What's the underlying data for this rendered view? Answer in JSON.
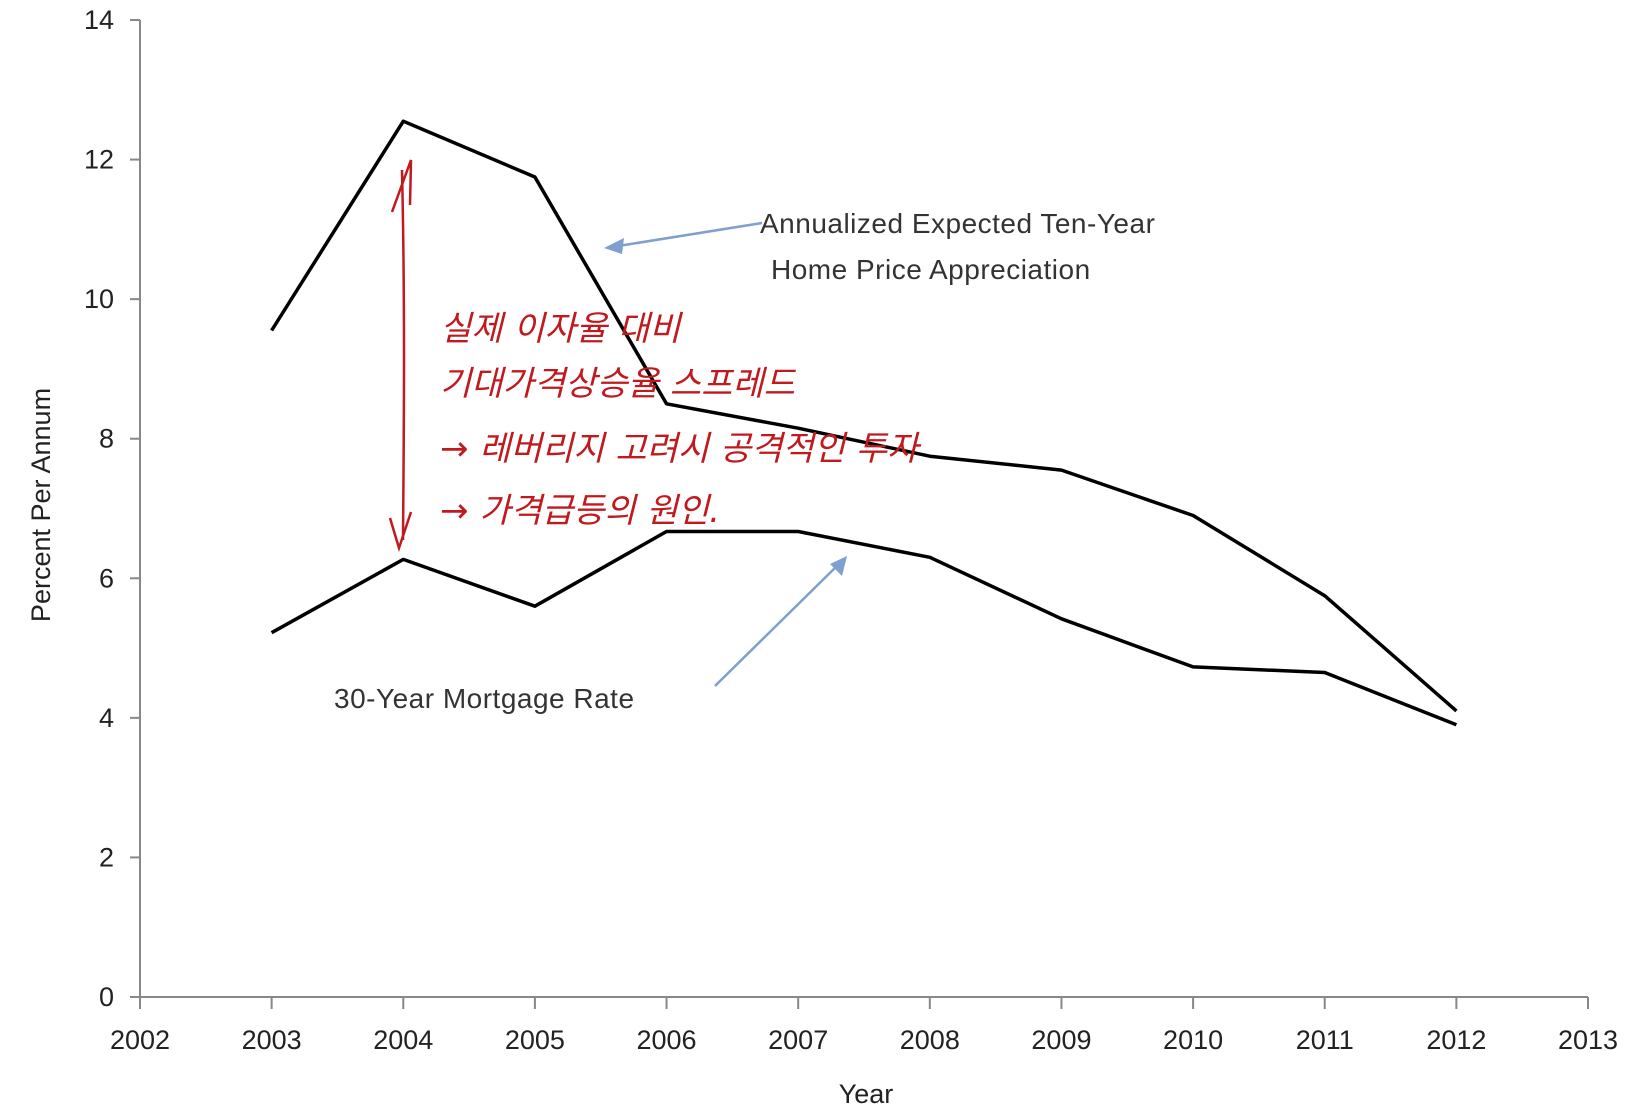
{
  "chart_data": {
    "type": "line",
    "x": [
      2003,
      2004,
      2005,
      2006,
      2007,
      2008,
      2009,
      2010,
      2011,
      2012
    ],
    "series": [
      {
        "name": "Annualized Expected Ten-Year Home Price Appreciation",
        "label_lines": [
          "Annualized  Expected Ten-Year",
          "Home Price Appreciation"
        ],
        "values": [
          9.55,
          12.55,
          11.75,
          8.5,
          8.15,
          7.75,
          7.55,
          6.9,
          5.75,
          4.1
        ],
        "color": "#000000"
      },
      {
        "name": "30-Year Mortgage Rate",
        "label_lines": [
          "30-Year Mortgage Rate"
        ],
        "values": [
          5.22,
          6.27,
          5.6,
          6.67,
          6.67,
          6.3,
          5.42,
          4.73,
          4.65,
          3.9
        ],
        "color": "#000000"
      }
    ],
    "xlabel": "Year",
    "ylabel": "Percent Per Annum",
    "xlim": [
      2002,
      2013
    ],
    "ylim": [
      0,
      14
    ],
    "xticks": [
      2002,
      2003,
      2004,
      2005,
      2006,
      2007,
      2008,
      2009,
      2010,
      2011,
      2012,
      2013
    ],
    "yticks": [
      0,
      2,
      4,
      6,
      8,
      10,
      12,
      14
    ],
    "grid": false,
    "legend": "none",
    "annotation_arrow_color": "#7f9fcf",
    "handwritten_annotation": {
      "color": "#c0191e",
      "lines": [
        "실제 이자율 대비",
        "기대가격상승율 스프레드",
        "→ 레버리지 고려시 공격적인 투자",
        "→ 가격급등의 원인."
      ]
    }
  }
}
